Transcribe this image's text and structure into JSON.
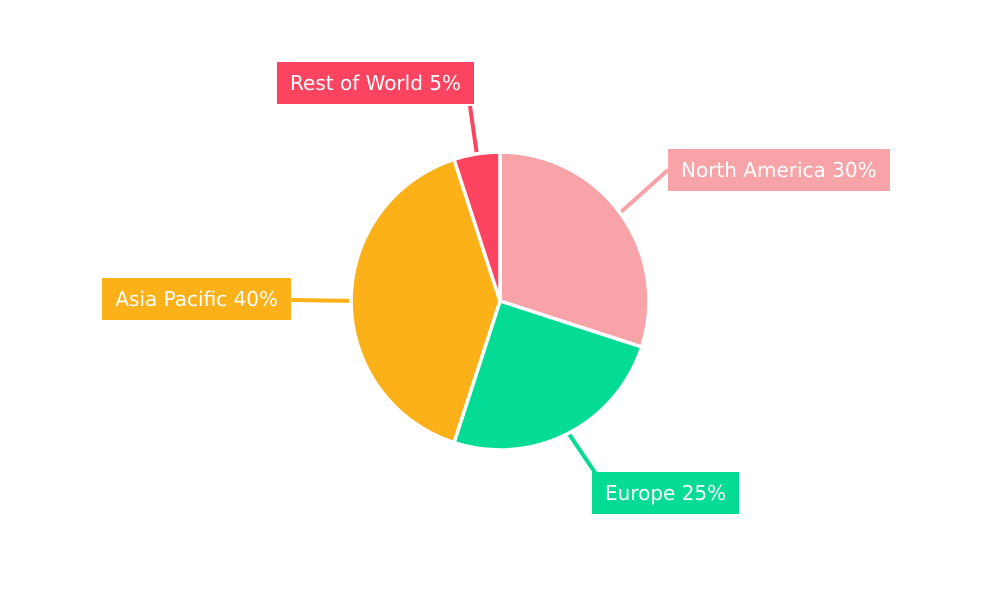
{
  "chart_data": {
    "type": "pie",
    "title": "",
    "categories": [
      "North America",
      "Europe",
      "Asia Pacific",
      "Rest of World"
    ],
    "values": [
      30,
      25,
      40,
      5
    ],
    "unit": "%",
    "labels": [
      "North America 30%",
      "Europe 25%",
      "Asia Pacific 40%",
      "Rest of World 5%"
    ],
    "colors": [
      "#F7A3A7",
      "#04DB94",
      "#FBB117",
      "#FC4460"
    ],
    "slice_border_color": "#FFFFFF",
    "label_text_color": "#FFFFFF",
    "background": "#FFFFFF",
    "start_angle": 0,
    "direction": "clockwise",
    "legend_position": "none",
    "label_style": "callout-boxes-with-leader-lines"
  }
}
